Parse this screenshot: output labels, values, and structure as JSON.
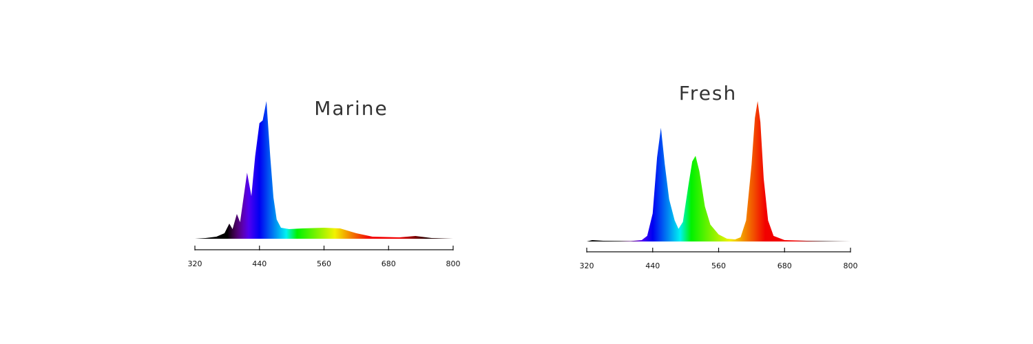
{
  "chart_data": [
    {
      "type": "area",
      "title": "Marine",
      "x": [
        320,
        340,
        360,
        375,
        384,
        390,
        398,
        404,
        417,
        425,
        432,
        440,
        446,
        453,
        460,
        466,
        472,
        480,
        495,
        520,
        560,
        590,
        620,
        650,
        700,
        730,
        760,
        800
      ],
      "values": [
        0,
        0.5,
        1.5,
        4,
        11,
        7,
        18,
        12,
        48,
        31,
        60,
        84,
        86,
        100,
        60,
        30,
        14,
        8,
        7,
        7.5,
        8,
        7.5,
        4,
        1.5,
        1,
        2,
        0.5,
        0
      ],
      "xlim": [
        320,
        800
      ],
      "xticks": [
        320,
        440,
        560,
        680,
        800
      ]
    },
    {
      "type": "area",
      "title": "Fresh",
      "x": [
        320,
        330,
        350,
        400,
        420,
        430,
        440,
        448,
        455,
        462,
        470,
        480,
        487,
        495,
        505,
        512,
        518,
        525,
        535,
        545,
        560,
        575,
        590,
        600,
        610,
        620,
        626,
        631,
        636,
        642,
        650,
        660,
        680,
        720,
        800
      ],
      "values": [
        0,
        1,
        0.5,
        0.3,
        1,
        4,
        20,
        60,
        81,
        55,
        30,
        15,
        9,
        14,
        40,
        57,
        61,
        50,
        25,
        12,
        5,
        2,
        1.5,
        3,
        15,
        55,
        88,
        100,
        85,
        45,
        15,
        4,
        1,
        0.5,
        0
      ],
      "xlim": [
        320,
        800
      ],
      "xticks": [
        320,
        440,
        560,
        680,
        800
      ]
    }
  ]
}
